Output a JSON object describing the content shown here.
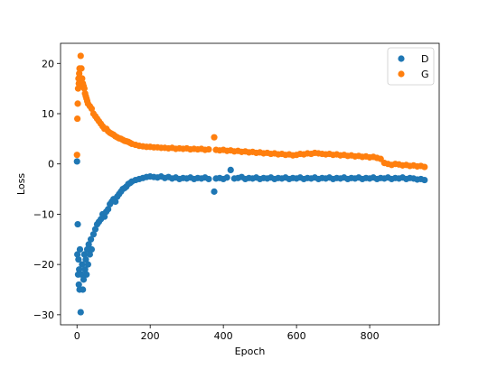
{
  "chart_data": {
    "type": "scatter",
    "title": "",
    "xlabel": "Epoch",
    "ylabel": "Loss",
    "xlim": [
      -45,
      990
    ],
    "ylim": [
      -32,
      24
    ],
    "xticks": [
      0,
      200,
      400,
      600,
      800
    ],
    "yticks": [
      -30,
      -20,
      -10,
      0,
      10,
      20
    ],
    "grid": false,
    "legend_position": "top-right",
    "series": [
      {
        "name": "D",
        "color": "#1f77b4",
        "points": [
          [
            0,
            0.5
          ],
          [
            1,
            -18
          ],
          [
            2,
            -12
          ],
          [
            3,
            -22
          ],
          [
            4,
            -19
          ],
          [
            5,
            -24
          ],
          [
            6,
            -21
          ],
          [
            7,
            -25
          ],
          [
            8,
            -17
          ],
          [
            10,
            -29.5
          ],
          [
            12,
            -22
          ],
          [
            14,
            -20
          ],
          [
            16,
            -25
          ],
          [
            18,
            -23
          ],
          [
            20,
            -18
          ],
          [
            22,
            -21
          ],
          [
            24,
            -19
          ],
          [
            26,
            -22
          ],
          [
            28,
            -17
          ],
          [
            30,
            -20
          ],
          [
            32,
            -16
          ],
          [
            35,
            -18
          ],
          [
            38,
            -15
          ],
          [
            40,
            -17
          ],
          [
            45,
            -14
          ],
          [
            50,
            -13
          ],
          [
            55,
            -12
          ],
          [
            60,
            -11.5
          ],
          [
            65,
            -11
          ],
          [
            70,
            -10
          ],
          [
            75,
            -10.5
          ],
          [
            80,
            -9.5
          ],
          [
            85,
            -9
          ],
          [
            90,
            -8
          ],
          [
            95,
            -7.5
          ],
          [
            100,
            -7
          ],
          [
            105,
            -7.5
          ],
          [
            110,
            -6.5
          ],
          [
            115,
            -6
          ],
          [
            120,
            -5.5
          ],
          [
            125,
            -5
          ],
          [
            130,
            -4.8
          ],
          [
            135,
            -4.5
          ],
          [
            140,
            -4
          ],
          [
            145,
            -3.8
          ],
          [
            150,
            -3.5
          ],
          [
            160,
            -3.2
          ],
          [
            170,
            -3.0
          ],
          [
            180,
            -2.8
          ],
          [
            190,
            -2.6
          ],
          [
            200,
            -2.5
          ],
          [
            210,
            -2.6
          ],
          [
            220,
            -2.7
          ],
          [
            230,
            -2.5
          ],
          [
            240,
            -2.8
          ],
          [
            250,
            -2.6
          ],
          [
            260,
            -2.9
          ],
          [
            270,
            -2.7
          ],
          [
            280,
            -3.0
          ],
          [
            290,
            -2.8
          ],
          [
            300,
            -2.9
          ],
          [
            310,
            -2.7
          ],
          [
            320,
            -3.0
          ],
          [
            330,
            -2.8
          ],
          [
            340,
            -2.9
          ],
          [
            350,
            -2.7
          ],
          [
            360,
            -3.0
          ],
          [
            375,
            -5.5
          ],
          [
            380,
            -2.9
          ],
          [
            390,
            -2.8
          ],
          [
            400,
            -3.0
          ],
          [
            410,
            -2.7
          ],
          [
            420,
            -1.2
          ],
          [
            430,
            -2.9
          ],
          [
            440,
            -2.8
          ],
          [
            450,
            -2.6
          ],
          [
            460,
            -3.0
          ],
          [
            470,
            -2.8
          ],
          [
            480,
            -2.9
          ],
          [
            490,
            -2.7
          ],
          [
            500,
            -3.0
          ],
          [
            510,
            -2.8
          ],
          [
            520,
            -2.9
          ],
          [
            530,
            -2.7
          ],
          [
            540,
            -3.0
          ],
          [
            550,
            -2.8
          ],
          [
            560,
            -2.9
          ],
          [
            570,
            -2.7
          ],
          [
            580,
            -3.0
          ],
          [
            590,
            -2.8
          ],
          [
            600,
            -2.9
          ],
          [
            610,
            -2.7
          ],
          [
            620,
            -3.0
          ],
          [
            630,
            -2.8
          ],
          [
            640,
            -2.9
          ],
          [
            650,
            -2.7
          ],
          [
            660,
            -3.0
          ],
          [
            670,
            -2.8
          ],
          [
            680,
            -2.9
          ],
          [
            690,
            -2.7
          ],
          [
            700,
            -3.0
          ],
          [
            710,
            -2.8
          ],
          [
            720,
            -2.9
          ],
          [
            730,
            -2.7
          ],
          [
            740,
            -3.0
          ],
          [
            750,
            -2.8
          ],
          [
            760,
            -2.9
          ],
          [
            770,
            -2.7
          ],
          [
            780,
            -3.0
          ],
          [
            790,
            -2.8
          ],
          [
            800,
            -2.9
          ],
          [
            810,
            -2.7
          ],
          [
            820,
            -3.0
          ],
          [
            830,
            -2.8
          ],
          [
            840,
            -2.9
          ],
          [
            850,
            -2.7
          ],
          [
            860,
            -3.0
          ],
          [
            870,
            -2.8
          ],
          [
            880,
            -2.9
          ],
          [
            890,
            -2.7
          ],
          [
            900,
            -3.0
          ],
          [
            910,
            -2.8
          ],
          [
            920,
            -2.9
          ],
          [
            930,
            -3.1
          ],
          [
            940,
            -3.0
          ],
          [
            950,
            -3.2
          ]
        ]
      },
      {
        "name": "G",
        "color": "#ff7f0e",
        "points": [
          [
            0,
            1.8
          ],
          [
            1,
            9
          ],
          [
            2,
            12
          ],
          [
            3,
            15
          ],
          [
            4,
            17
          ],
          [
            5,
            16
          ],
          [
            6,
            18
          ],
          [
            7,
            19
          ],
          [
            8,
            17
          ],
          [
            10,
            21.5
          ],
          [
            12,
            19
          ],
          [
            14,
            17
          ],
          [
            16,
            16
          ],
          [
            18,
            15.5
          ],
          [
            20,
            15
          ],
          [
            22,
            14
          ],
          [
            24,
            13.5
          ],
          [
            26,
            13
          ],
          [
            28,
            12.5
          ],
          [
            30,
            12
          ],
          [
            35,
            11.5
          ],
          [
            40,
            11
          ],
          [
            45,
            10
          ],
          [
            50,
            9.5
          ],
          [
            55,
            9
          ],
          [
            60,
            8.5
          ],
          [
            65,
            8
          ],
          [
            70,
            7.5
          ],
          [
            75,
            7
          ],
          [
            80,
            7
          ],
          [
            85,
            6.5
          ],
          [
            90,
            6.2
          ],
          [
            95,
            6
          ],
          [
            100,
            5.8
          ],
          [
            105,
            5.5
          ],
          [
            110,
            5.3
          ],
          [
            115,
            5.1
          ],
          [
            120,
            5
          ],
          [
            125,
            4.8
          ],
          [
            130,
            4.6
          ],
          [
            135,
            4.5
          ],
          [
            140,
            4.4
          ],
          [
            145,
            4.2
          ],
          [
            150,
            4.0
          ],
          [
            160,
            3.8
          ],
          [
            170,
            3.6
          ],
          [
            180,
            3.5
          ],
          [
            190,
            3.4
          ],
          [
            200,
            3.4
          ],
          [
            210,
            3.3
          ],
          [
            220,
            3.3
          ],
          [
            230,
            3.2
          ],
          [
            240,
            3.2
          ],
          [
            250,
            3.1
          ],
          [
            260,
            3.2
          ],
          [
            270,
            3.0
          ],
          [
            280,
            3.1
          ],
          [
            290,
            3.0
          ],
          [
            300,
            3.1
          ],
          [
            310,
            2.9
          ],
          [
            320,
            3.0
          ],
          [
            330,
            2.9
          ],
          [
            340,
            3.0
          ],
          [
            350,
            2.8
          ],
          [
            360,
            2.9
          ],
          [
            375,
            5.3
          ],
          [
            380,
            2.8
          ],
          [
            390,
            2.7
          ],
          [
            400,
            2.8
          ],
          [
            410,
            2.6
          ],
          [
            420,
            2.7
          ],
          [
            430,
            2.5
          ],
          [
            440,
            2.6
          ],
          [
            450,
            2.4
          ],
          [
            460,
            2.5
          ],
          [
            470,
            2.3
          ],
          [
            480,
            2.4
          ],
          [
            490,
            2.2
          ],
          [
            500,
            2.3
          ],
          [
            510,
            2.1
          ],
          [
            520,
            2.2
          ],
          [
            530,
            2.0
          ],
          [
            540,
            2.1
          ],
          [
            550,
            1.9
          ],
          [
            560,
            2.0
          ],
          [
            570,
            1.8
          ],
          [
            580,
            1.9
          ],
          [
            590,
            1.7
          ],
          [
            600,
            1.8
          ],
          [
            610,
            2.0
          ],
          [
            620,
            1.9
          ],
          [
            630,
            2.1
          ],
          [
            640,
            2.0
          ],
          [
            650,
            2.2
          ],
          [
            660,
            2.1
          ],
          [
            670,
            2.0
          ],
          [
            680,
            1.9
          ],
          [
            690,
            2.0
          ],
          [
            700,
            1.8
          ],
          [
            710,
            1.9
          ],
          [
            720,
            1.7
          ],
          [
            730,
            1.8
          ],
          [
            740,
            1.6
          ],
          [
            750,
            1.7
          ],
          [
            760,
            1.5
          ],
          [
            770,
            1.6
          ],
          [
            780,
            1.4
          ],
          [
            790,
            1.5
          ],
          [
            800,
            1.3
          ],
          [
            810,
            1.4
          ],
          [
            820,
            1.2
          ],
          [
            830,
            1.0
          ],
          [
            840,
            0.2
          ],
          [
            850,
            0.0
          ],
          [
            860,
            -0.2
          ],
          [
            870,
            0.0
          ],
          [
            880,
            -0.1
          ],
          [
            890,
            -0.3
          ],
          [
            900,
            -0.2
          ],
          [
            910,
            -0.4
          ],
          [
            920,
            -0.3
          ],
          [
            930,
            -0.5
          ],
          [
            940,
            -0.4
          ],
          [
            950,
            -0.6
          ]
        ]
      }
    ]
  }
}
